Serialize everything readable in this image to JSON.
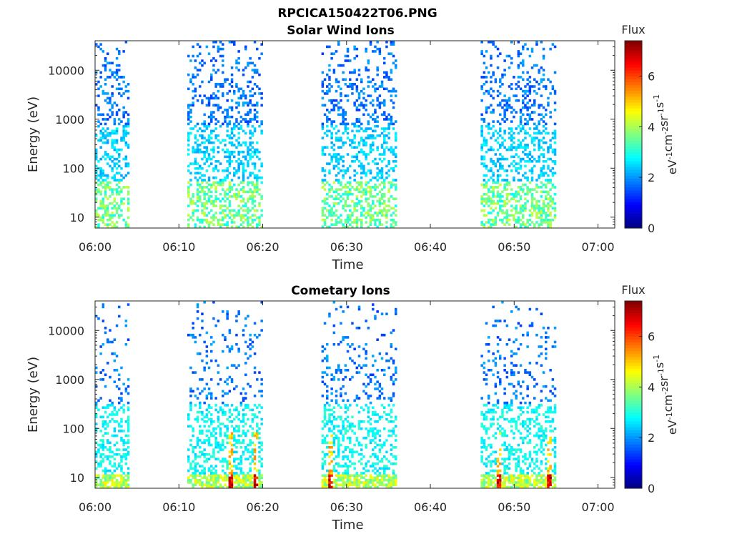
{
  "figure": {
    "title": "RPCICA150422T06.PNG"
  },
  "chart_data": [
    {
      "type": "heatmap",
      "title": "Solar Wind Ions",
      "xlabel": "Time",
      "ylabel": "Energy (eV)",
      "xlim": [
        "06:00",
        "07:02"
      ],
      "xticks": [
        "06:00",
        "06:10",
        "06:20",
        "06:30",
        "06:40",
        "06:50",
        "07:00"
      ],
      "yscale": "log",
      "ylim": [
        6,
        40000
      ],
      "yticks": [
        "10",
        "100",
        "1000",
        "10000"
      ],
      "colorbar": {
        "label": "Flux",
        "unit_label": "eV-1cm-2sr-1s-1",
        "range": [
          0,
          7.4
        ],
        "ticks": [
          "0",
          "2",
          "4",
          "6"
        ],
        "colormap": "jet"
      },
      "grid": false,
      "activity_intervals": [
        {
          "start": "06:00",
          "end": "06:04"
        },
        {
          "start": "06:11",
          "end": "06:20"
        },
        {
          "start": "06:27",
          "end": "06:36"
        },
        {
          "start": "06:46",
          "end": "06:55"
        }
      ]
    },
    {
      "type": "heatmap",
      "title": "Cometary Ions",
      "xlabel": "Time",
      "ylabel": "Energy (eV)",
      "xlim": [
        "06:00",
        "07:02"
      ],
      "xticks": [
        "06:00",
        "06:10",
        "06:20",
        "06:30",
        "06:40",
        "06:50",
        "07:00"
      ],
      "yscale": "log",
      "ylim": [
        6,
        40000
      ],
      "yticks": [
        "10",
        "100",
        "1000",
        "10000"
      ],
      "colorbar": {
        "label": "Flux",
        "unit_label": "eV-1cm-2sr-1s-1",
        "range": [
          0,
          7.4
        ],
        "ticks": [
          "0",
          "2",
          "4",
          "6"
        ],
        "colormap": "jet"
      },
      "grid": false,
      "activity_intervals": [
        {
          "start": "06:00",
          "end": "06:04"
        },
        {
          "start": "06:11",
          "end": "06:20"
        },
        {
          "start": "06:27",
          "end": "06:36"
        },
        {
          "start": "06:46",
          "end": "06:55"
        }
      ],
      "flux_peaks": [
        "06:16",
        "06:19",
        "06:28",
        "06:48",
        "06:54"
      ]
    }
  ]
}
